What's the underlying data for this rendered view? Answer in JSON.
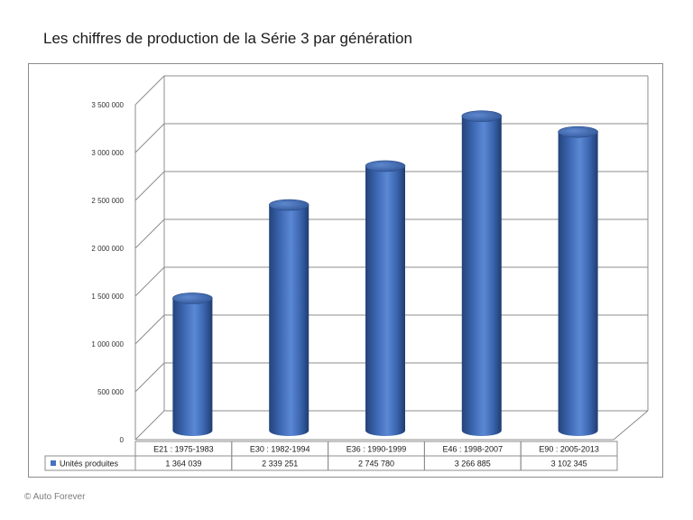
{
  "title": "Les chiffres de production de la Série 3 par génération",
  "credit": "© Auto Forever",
  "colors": {
    "bar": "#4472c4",
    "grid": "#8c8c8c"
  },
  "chart_data": {
    "type": "bar",
    "style": "3d-cylinder",
    "title": "Les chiffres de production de la Série 3 par génération",
    "categories": [
      "E21 : 1975-1983",
      "E30 : 1982-1994",
      "E36 : 1990-1999",
      "E46 : 1998-2007",
      "E90 : 2005-2013"
    ],
    "series": [
      {
        "name": "Unités produites",
        "values": [
          1364039,
          2339251,
          2745780,
          3266885,
          3102345
        ],
        "value_labels": [
          "1 364 039",
          "2 339 251",
          "2 745 780",
          "3 266 885",
          "3 102 345"
        ]
      }
    ],
    "ylim": [
      0,
      3500000
    ],
    "yticks": [
      0,
      500000,
      1000000,
      1500000,
      2000000,
      2500000,
      3000000,
      3500000
    ],
    "ytick_labels": [
      "0",
      "500 000",
      "1 000 000",
      "1 500 000",
      "2 000 000",
      "2 500 000",
      "3 000 000",
      "3 500 000"
    ],
    "grid": true,
    "legend": "data-table"
  }
}
